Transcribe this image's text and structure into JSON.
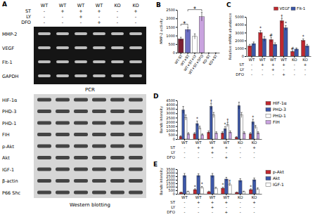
{
  "panel_a": {
    "title": "A",
    "conditions": [
      {
        "cells": [
          "WT",
          "WT",
          "WT",
          "WT",
          "KO",
          "KO"
        ]
      },
      {
        "label": "ST",
        "cells": [
          "-",
          "+",
          "+",
          "+",
          "-",
          "+"
        ]
      },
      {
        "label": "LY",
        "cells": [
          "-",
          "-",
          "+",
          "-",
          "-",
          "-"
        ]
      },
      {
        "label": "DFO",
        "cells": [
          "-",
          "-",
          "-",
          "+",
          "-",
          "-"
        ]
      }
    ],
    "pcr": {
      "rows": [
        "MMP-2",
        "VEGF",
        "Flt-1",
        "GAPDH"
      ],
      "label": "PCR"
    },
    "western": {
      "rows": [
        "HIF-1α",
        "PHD-3",
        "PHD-1",
        "FIH",
        "p-Akt",
        "Akt",
        "IGF-1",
        "β-actin",
        "P66 Shc"
      ],
      "label": "Western blotting"
    }
  },
  "chart_data": [
    {
      "type": "bar",
      "title": "B",
      "y_label": "MMP-2 activity",
      "categories": [
        "WT-ST",
        "WT+ST",
        "WT+ST+LY",
        "WT+ST+DFO",
        "KO-ST",
        "KO+ST"
      ],
      "values": [
        800,
        1350,
        950,
        2100,
        0,
        0
      ],
      "errors": [
        100,
        150,
        150,
        250,
        0,
        0
      ],
      "colors": [
        "#7b1f33",
        "#6d6fc4",
        "#ffffff",
        "#c9a3df",
        "#7b1f33",
        "#6d6fc4"
      ],
      "ylim": [
        0,
        2500
      ],
      "yticks": [
        0,
        500,
        1000,
        1500,
        2000,
        2500
      ],
      "annotations": [
        {
          "text": "*",
          "from": 0,
          "to": 1
        },
        {
          "text": "*",
          "from": 1,
          "to": 3
        }
      ]
    },
    {
      "type": "bar",
      "title": "C",
      "y_label": "Relative mRNA abundance",
      "categories": [
        "WT",
        "WT",
        "WT",
        "WT",
        "KO",
        "KO"
      ],
      "condition_rows": [
        {
          "label": "ST",
          "cells": [
            "-",
            "+",
            "+",
            "+",
            "-",
            "+"
          ]
        },
        {
          "label": "LY",
          "cells": [
            "-",
            "-",
            "+",
            "-",
            "-",
            "-"
          ]
        },
        {
          "label": "DFO",
          "cells": [
            "-",
            "-",
            "-",
            "+",
            "-",
            "-"
          ]
        }
      ],
      "series": [
        {
          "name": "VEGF",
          "color": "#c0282f",
          "values": [
            1300,
            3000,
            2100,
            4500,
            600,
            2000
          ],
          "errors": [
            200,
            250,
            300,
            300,
            100,
            200
          ]
        },
        {
          "name": "Flt-1",
          "color": "#3c57a8",
          "values": [
            1600,
            2200,
            1500,
            3600,
            900,
            1300
          ],
          "errors": [
            200,
            300,
            200,
            300,
            150,
            200
          ]
        }
      ],
      "ylim": [
        0,
        5000
      ],
      "yticks": [
        0,
        1000,
        2000,
        3000,
        4000,
        5000
      ],
      "legend": "top-right",
      "annotations": [
        {
          "text": "*",
          "series": 0,
          "index": 1
        },
        {
          "text": "#",
          "series": 0,
          "index": 2
        },
        {
          "text": "†",
          "series": 0,
          "index": 3
        },
        {
          "text": "*",
          "series": 1,
          "index": 3
        },
        {
          "text": "#",
          "series": 0,
          "index": 4
        },
        {
          "text": "*",
          "series": 0,
          "index": 5
        }
      ]
    },
    {
      "type": "bar",
      "title": "D",
      "y_label": "Bands intensity",
      "categories": [
        "WT",
        "WT",
        "WT",
        "WT",
        "KO",
        "KO"
      ],
      "condition_rows": [
        {
          "label": "ST",
          "cells": [
            "-",
            "+",
            "+",
            "+",
            "-",
            "+"
          ]
        },
        {
          "label": "LY",
          "cells": [
            "-",
            "-",
            "+",
            "-",
            "-",
            "-"
          ]
        },
        {
          "label": "DFO",
          "cells": [
            "-",
            "-",
            "-",
            "+",
            "-",
            "-"
          ]
        }
      ],
      "series": [
        {
          "name": "HIF-1α",
          "color": "#c0282f",
          "values": [
            300,
            600,
            800,
            700,
            200,
            600
          ],
          "errors": [
            100,
            150,
            150,
            150,
            80,
            150
          ]
        },
        {
          "name": "PHD-3",
          "color": "#3c57a8",
          "values": [
            3400,
            1800,
            3800,
            1200,
            3900,
            2000
          ],
          "errors": [
            400,
            300,
            350,
            250,
            400,
            300
          ]
        },
        {
          "name": "PHD-1",
          "color": "#ffffff",
          "values": [
            2500,
            1300,
            2800,
            1700,
            2800,
            1400
          ],
          "errors": [
            300,
            200,
            300,
            250,
            300,
            200
          ]
        },
        {
          "name": "FIH",
          "color": "#c9a3df",
          "values": [
            600,
            500,
            700,
            800,
            700,
            700
          ],
          "errors": [
            150,
            100,
            150,
            150,
            150,
            150
          ]
        }
      ],
      "ylim": [
        0,
        4500
      ],
      "yticks": [
        0,
        500,
        1000,
        1500,
        2000,
        2500,
        3000,
        3500,
        4000,
        4500
      ],
      "legend": "right",
      "annotations": [
        {
          "text": "*",
          "series": 1,
          "index": 1
        },
        {
          "text": "†",
          "series": 1,
          "index": 2
        },
        {
          "text": "*",
          "series": 1,
          "index": 3
        },
        {
          "text": "†",
          "series": 2,
          "index": 3
        },
        {
          "text": "*",
          "series": 1,
          "index": 5
        }
      ]
    },
    {
      "type": "bar",
      "title": "E",
      "y_label": "Bands intensity",
      "categories": [
        "WT",
        "WT",
        "WT",
        "WT",
        "KO",
        "KO"
      ],
      "condition_rows": [
        {
          "label": "ST",
          "cells": [
            "-",
            "+",
            "+",
            "+",
            "-",
            "+"
          ]
        },
        {
          "label": "LY",
          "cells": [
            "-",
            "-",
            "+",
            "-",
            "-",
            "-"
          ]
        },
        {
          "label": "DFO",
          "cells": [
            "-",
            "-",
            "-",
            "+",
            "-",
            "-"
          ]
        }
      ],
      "series": [
        {
          "name": "p-Akt",
          "color": "#c0282f",
          "values": [
            200,
            600,
            300,
            800,
            200,
            600
          ],
          "errors": [
            60,
            120,
            80,
            150,
            60,
            120
          ]
        },
        {
          "name": "Akt",
          "color": "#3c57a8",
          "values": [
            2600,
            2600,
            2600,
            2100,
            1900,
            2000
          ],
          "errors": [
            300,
            250,
            300,
            250,
            250,
            250
          ]
        },
        {
          "name": "IGF-1",
          "color": "#ffffff",
          "values": [
            300,
            900,
            800,
            1300,
            300,
            700
          ],
          "errors": [
            80,
            150,
            150,
            200,
            80,
            150
          ]
        }
      ],
      "ylim": [
        0,
        3500
      ],
      "yticks": [
        0,
        500,
        1000,
        1500,
        2000,
        2500,
        3000,
        3500
      ],
      "legend": "right",
      "annotations": [
        {
          "text": "*",
          "series": 0,
          "index": 1
        },
        {
          "text": "*",
          "series": 2,
          "index": 1
        },
        {
          "text": "*",
          "series": 0,
          "index": 3
        },
        {
          "text": "†",
          "series": 2,
          "index": 3
        },
        {
          "text": "*",
          "series": 0,
          "index": 5
        }
      ]
    }
  ]
}
